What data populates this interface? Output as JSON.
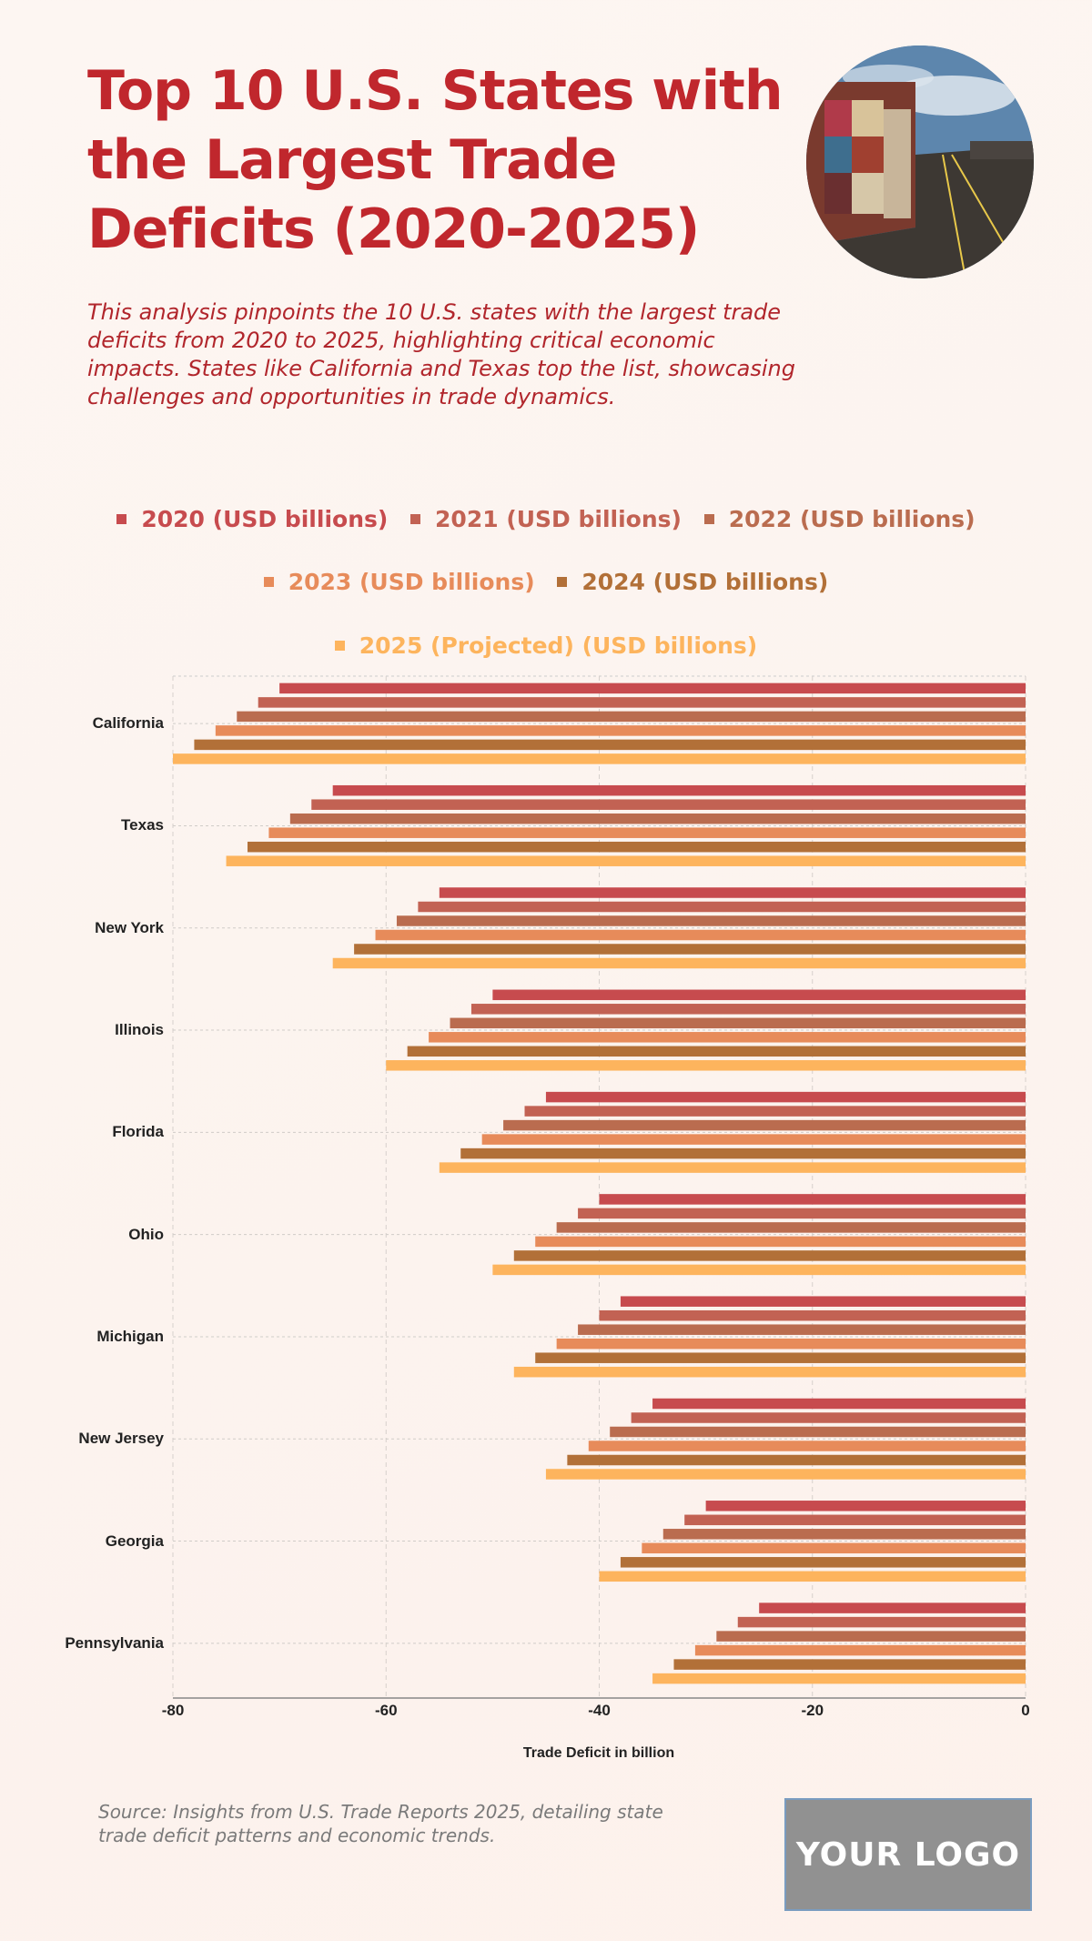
{
  "header": {
    "title": "Top 10 U.S. States with the Largest Trade Deficits (2020-2025)",
    "subtitle": "This analysis pinpoints the 10 U.S. states with the largest trade deficits from 2020 to 2025, highlighting critical economic impacts. States like California and Texas top the list, showcasing challenges and opportunities in trade dynamics.",
    "image": "shipping-containers-photo"
  },
  "footer": {
    "source": "Source: Insights from U.S. Trade Reports 2025, detailing state trade deficit patterns and economic trends.",
    "logo": "YOUR LOGO"
  },
  "chart_data": {
    "type": "bar",
    "orientation": "horizontal",
    "title": "Top 10 U.S. States with the Largest Trade Deficits (2020-2025)",
    "xlabel": "Trade Deficit in billion",
    "ylabel": "",
    "xlim": [
      -80,
      0
    ],
    "xticks": [
      -80,
      -60,
      -40,
      -20,
      0
    ],
    "grid": true,
    "legend_position": "top-center",
    "categories": [
      "California",
      "Texas",
      "New York",
      "Illinois",
      "Florida",
      "Ohio",
      "Michigan",
      "New Jersey",
      "Georgia",
      "Pennsylvania"
    ],
    "series": [
      {
        "name": "2020 (USD billions)",
        "color": "#c74b4e",
        "values": [
          -70,
          -65,
          -55,
          -50,
          -45,
          -40,
          -38,
          -35,
          -30,
          -25
        ]
      },
      {
        "name": "2021 (USD billions)",
        "color": "#c26253",
        "values": [
          -72,
          -67,
          -57,
          -52,
          -47,
          -42,
          -40,
          -37,
          -32,
          -27
        ]
      },
      {
        "name": "2022 (USD billions)",
        "color": "#ba6c4f",
        "values": [
          -74,
          -69,
          -59,
          -54,
          -49,
          -44,
          -42,
          -39,
          -34,
          -29
        ]
      },
      {
        "name": "2023 (USD billions)",
        "color": "#e78b5a",
        "values": [
          -76,
          -71,
          -61,
          -56,
          -51,
          -46,
          -44,
          -41,
          -36,
          -31
        ]
      },
      {
        "name": "2024 (USD billions)",
        "color": "#b27038",
        "values": [
          -78,
          -73,
          -63,
          -58,
          -53,
          -48,
          -46,
          -43,
          -38,
          -33
        ]
      },
      {
        "name": "2025 (Projected) (USD billions)",
        "color": "#fdb45d",
        "values": [
          -80,
          -75,
          -65,
          -60,
          -55,
          -50,
          -48,
          -45,
          -40,
          -35
        ]
      }
    ]
  }
}
